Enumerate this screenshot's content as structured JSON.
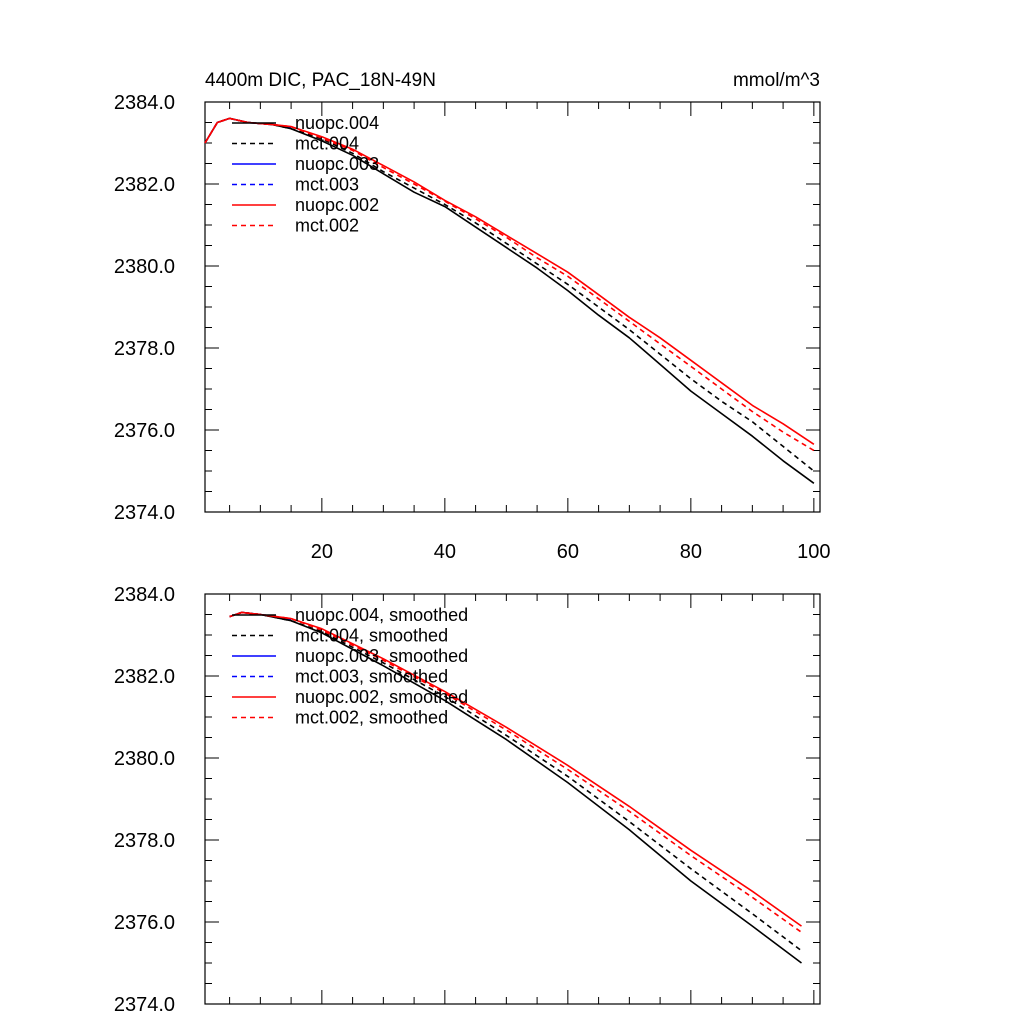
{
  "figure": {
    "title": "4400m DIC, PAC_18N-49N",
    "units": "mmol/m^3"
  },
  "chart_data": [
    {
      "type": "line",
      "panel": "top",
      "title": "4400m DIC, PAC_18N-49N",
      "units": "mmol/m^3",
      "xlabel": "",
      "ylabel": "",
      "xlim": [
        1,
        101
      ],
      "ylim": [
        2374.0,
        2384.0
      ],
      "xticks": [
        20,
        40,
        60,
        80,
        100
      ],
      "xtick_labels": [
        "20",
        "40",
        "60",
        "80",
        "100"
      ],
      "yticks": [
        2374.0,
        2376.0,
        2378.0,
        2380.0,
        2382.0,
        2384.0
      ],
      "ytick_labels": [
        "2374.0",
        "2376.0",
        "2378.0",
        "2380.0",
        "2382.0",
        "2384.0"
      ],
      "legend_position": "top-left",
      "series": [
        {
          "name": "nuopc.004",
          "color": "#000000",
          "dash": "solid",
          "x": [
            1,
            3,
            5,
            8,
            12,
            15,
            20,
            25,
            30,
            35,
            40,
            45,
            50,
            55,
            60,
            65,
            70,
            75,
            80,
            85,
            90,
            95,
            100
          ],
          "y": [
            2383.0,
            2383.5,
            2383.6,
            2383.5,
            2383.45,
            2383.35,
            2383.05,
            2382.7,
            2382.25,
            2381.8,
            2381.45,
            2380.95,
            2380.45,
            2379.95,
            2379.4,
            2378.8,
            2378.25,
            2377.6,
            2376.95,
            2376.4,
            2375.85,
            2375.25,
            2374.7
          ]
        },
        {
          "name": "mct.004",
          "color": "#000000",
          "dash": "dashed",
          "x": [
            1,
            3,
            5,
            8,
            12,
            15,
            20,
            25,
            30,
            35,
            40,
            45,
            50,
            55,
            60,
            65,
            70,
            75,
            80,
            85,
            90,
            95,
            100
          ],
          "y": [
            2383.0,
            2383.5,
            2383.6,
            2383.5,
            2383.45,
            2383.35,
            2383.1,
            2382.75,
            2382.3,
            2381.9,
            2381.5,
            2381.05,
            2380.55,
            2380.05,
            2379.55,
            2379.0,
            2378.45,
            2377.85,
            2377.25,
            2376.7,
            2376.2,
            2375.6,
            2375.0
          ]
        },
        {
          "name": "nuopc.003",
          "color": "#0000ff",
          "dash": "solid",
          "x": [
            1,
            3,
            5,
            8,
            12,
            15
          ],
          "y": [
            2383.0,
            2383.5,
            2383.6,
            2383.5,
            2383.45,
            2383.38
          ]
        },
        {
          "name": "mct.003",
          "color": "#0000ff",
          "dash": "dashed",
          "x": [
            1,
            3,
            5,
            8,
            12,
            15
          ],
          "y": [
            2383.0,
            2383.5,
            2383.6,
            2383.5,
            2383.45,
            2383.38
          ]
        },
        {
          "name": "nuopc.002",
          "color": "#ff0000",
          "dash": "solid",
          "x": [
            1,
            3,
            5,
            8,
            12,
            15,
            20,
            25,
            30,
            35,
            40,
            45,
            50,
            55,
            60,
            65,
            70,
            75,
            80,
            85,
            90,
            95,
            100
          ],
          "y": [
            2383.0,
            2383.5,
            2383.6,
            2383.5,
            2383.45,
            2383.4,
            2383.15,
            2382.85,
            2382.45,
            2382.05,
            2381.6,
            2381.2,
            2380.75,
            2380.3,
            2379.85,
            2379.3,
            2378.75,
            2378.25,
            2377.7,
            2377.15,
            2376.6,
            2376.15,
            2375.65
          ]
        },
        {
          "name": "mct.002",
          "color": "#ff0000",
          "dash": "dashed",
          "x": [
            1,
            3,
            5,
            8,
            12,
            15,
            20,
            25,
            30,
            35,
            40,
            45,
            50,
            55,
            60,
            65,
            70,
            75,
            80,
            85,
            90,
            95,
            100
          ],
          "y": [
            2383.0,
            2383.5,
            2383.6,
            2383.5,
            2383.45,
            2383.4,
            2383.12,
            2382.82,
            2382.4,
            2382.0,
            2381.58,
            2381.15,
            2380.7,
            2380.2,
            2379.75,
            2379.2,
            2378.65,
            2378.1,
            2377.55,
            2377.0,
            2376.45,
            2375.95,
            2375.5
          ]
        }
      ]
    },
    {
      "type": "line",
      "panel": "bottom",
      "title": "",
      "xlabel": "",
      "ylabel": "",
      "xlim": [
        1,
        101
      ],
      "ylim": [
        2374.0,
        2384.0
      ],
      "xticks": [
        20,
        40,
        60,
        80,
        100
      ],
      "xtick_labels": [],
      "yticks": [
        2374.0,
        2376.0,
        2378.0,
        2380.0,
        2382.0,
        2384.0
      ],
      "ytick_labels": [
        "2374.0",
        "2376.0",
        "2378.0",
        "2380.0",
        "2382.0",
        "2384.0"
      ],
      "legend_position": "top-left",
      "series": [
        {
          "name": "nuopc.004, smoothed",
          "color": "#000000",
          "dash": "solid",
          "x": [
            5,
            7,
            10,
            15,
            20,
            30,
            40,
            50,
            60,
            70,
            80,
            90,
            98
          ],
          "y": [
            2383.45,
            2383.55,
            2383.5,
            2383.35,
            2383.05,
            2382.25,
            2381.4,
            2380.45,
            2379.4,
            2378.25,
            2377.0,
            2375.9,
            2375.0
          ]
        },
        {
          "name": "mct.004, smoothed",
          "color": "#000000",
          "dash": "dashed",
          "x": [
            5,
            7,
            10,
            15,
            20,
            30,
            40,
            50,
            60,
            70,
            80,
            90,
            98
          ],
          "y": [
            2383.45,
            2383.55,
            2383.5,
            2383.35,
            2383.08,
            2382.32,
            2381.5,
            2380.55,
            2379.55,
            2378.45,
            2377.3,
            2376.2,
            2375.3
          ]
        },
        {
          "name": "nuopc.003, smoothed",
          "color": "#0000ff",
          "dash": "solid",
          "x": [
            5,
            7,
            10,
            15
          ],
          "y": [
            2383.45,
            2383.55,
            2383.5,
            2383.38
          ]
        },
        {
          "name": "mct.003, smoothed",
          "color": "#0000ff",
          "dash": "dashed",
          "x": [
            5,
            7,
            10,
            15
          ],
          "y": [
            2383.45,
            2383.55,
            2383.5,
            2383.38
          ]
        },
        {
          "name": "nuopc.002, smoothed",
          "color": "#ff0000",
          "dash": "solid",
          "x": [
            5,
            7,
            10,
            15,
            20,
            30,
            40,
            50,
            60,
            70,
            80,
            90,
            98
          ],
          "y": [
            2383.45,
            2383.55,
            2383.5,
            2383.4,
            2383.15,
            2382.42,
            2381.62,
            2380.75,
            2379.82,
            2378.82,
            2377.75,
            2376.75,
            2375.9
          ]
        },
        {
          "name": "mct.002, smoothed",
          "color": "#ff0000",
          "dash": "dashed",
          "x": [
            5,
            7,
            10,
            15,
            20,
            30,
            40,
            50,
            60,
            70,
            80,
            90,
            98
          ],
          "y": [
            2383.45,
            2383.55,
            2383.5,
            2383.4,
            2383.12,
            2382.38,
            2381.58,
            2380.68,
            2379.72,
            2378.7,
            2377.62,
            2376.6,
            2375.75
          ]
        }
      ]
    }
  ]
}
